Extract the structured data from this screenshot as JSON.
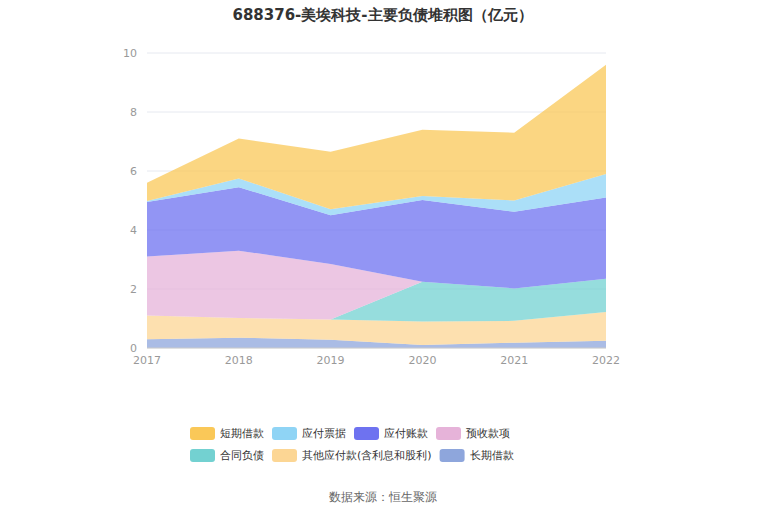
{
  "chart_data": {
    "type": "area",
    "title": "688376-美埃科技-主要负债堆积图（亿元）",
    "annotations": [
      "数据来源：恒生聚源"
    ],
    "categories": [
      "2017",
      "2018",
      "2019",
      "2020",
      "2021",
      "2022"
    ],
    "stacked": true,
    "grid": true,
    "legend": "bottom",
    "ylim": [
      0,
      10
    ],
    "yticks": [
      0,
      2,
      4,
      6,
      8,
      10
    ],
    "series": [
      {
        "name": "短期借款",
        "color": "#fac858",
        "values": [
          0.62,
          1.35,
          1.95,
          2.25,
          2.3,
          3.7
        ]
      },
      {
        "name": "应付票据",
        "color": "#8fd4f5",
        "values": [
          0.03,
          0.3,
          0.2,
          0.13,
          0.38,
          0.8
        ]
      },
      {
        "name": "应付账款",
        "color": "#6e72f0",
        "values": [
          1.85,
          2.15,
          1.65,
          2.77,
          2.6,
          2.75
        ]
      },
      {
        "name": "预收款项",
        "color": "#e6b3d9",
        "values": [
          2.0,
          2.28,
          1.88,
          0,
          0,
          0
        ]
      },
      {
        "name": "合同负债",
        "color": "#73d1d1",
        "values": [
          0,
          0,
          0,
          1.35,
          1.1,
          1.13
        ]
      },
      {
        "name": "其他应付款(含利息和股利)",
        "color": "#fcd694",
        "values": [
          0.8,
          0.67,
          0.69,
          0.8,
          0.74,
          0.97
        ]
      },
      {
        "name": "长期借款",
        "color": "#8ea6dc",
        "values": [
          0.3,
          0.35,
          0.28,
          0.1,
          0.18,
          0.25
        ]
      }
    ]
  }
}
